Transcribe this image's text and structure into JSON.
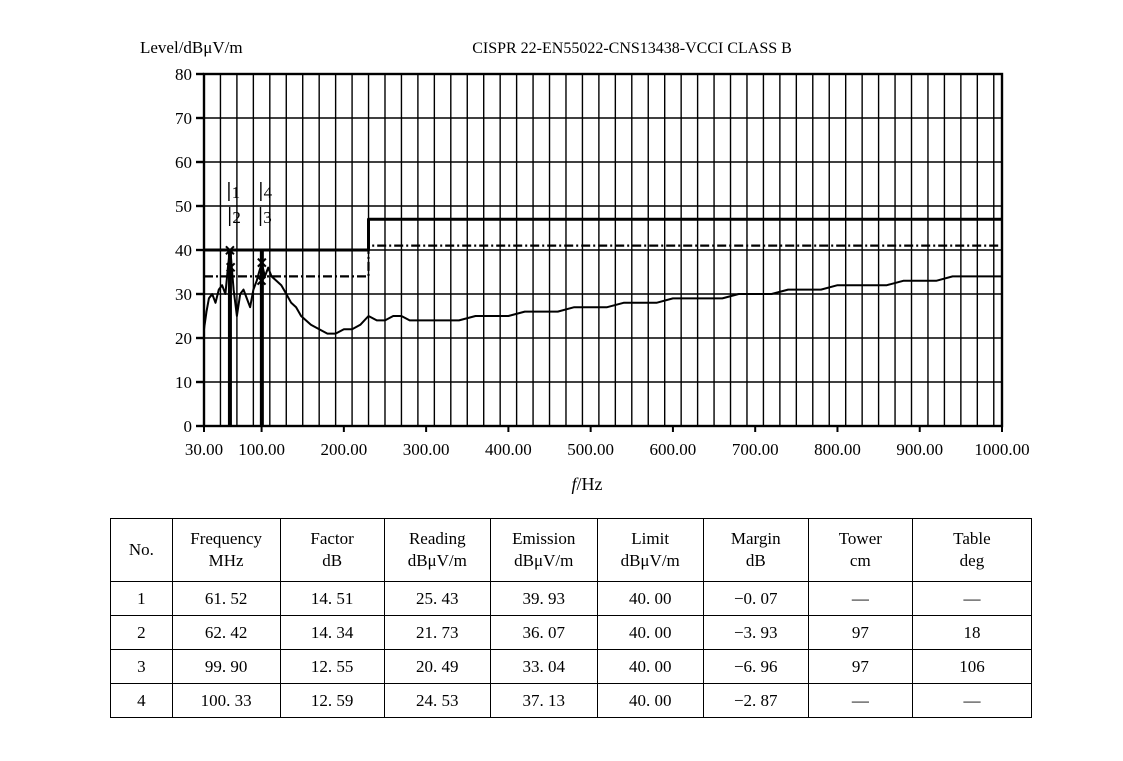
{
  "chart_data": {
    "type": "line",
    "title": "CISPR 22-EN55022-CNS13438-VCCI CLASS B",
    "ylabel": "Level/dBμV/m",
    "xlabel_italic": "f",
    "xlabel_unit": "/Hz",
    "xlim": [
      30,
      1000
    ],
    "ylim": [
      0,
      80
    ],
    "x_ticks": [
      "30.00",
      "100.00",
      "200.00",
      "300.00",
      "400.00",
      "500.00",
      "600.00",
      "700.00",
      "800.00",
      "900.00",
      "1000.00"
    ],
    "y_ticks": [
      "0",
      "10",
      "20",
      "30",
      "40",
      "50",
      "60",
      "70",
      "80"
    ],
    "grid": true,
    "series": [
      {
        "id": "limit",
        "style": "solid-thick",
        "x": [
          30,
          230,
          230,
          1000
        ],
        "y": [
          40,
          40,
          47,
          47
        ]
      },
      {
        "id": "margin-line",
        "style": "dashed",
        "x": [
          30,
          230,
          230,
          1000
        ],
        "y": [
          34,
          34,
          41,
          41
        ]
      },
      {
        "id": "emission",
        "style": "solid",
        "x": [
          30,
          33,
          36,
          40,
          44,
          48,
          52,
          56,
          59,
          61.5,
          63,
          66,
          70,
          74,
          78,
          82,
          86,
          90,
          94,
          97,
          100.3,
          104,
          108,
          112,
          118,
          124,
          130,
          136,
          142,
          148,
          154,
          160,
          170,
          180,
          190,
          200,
          210,
          220,
          230,
          240,
          250,
          260,
          270,
          280,
          290,
          300,
          320,
          340,
          360,
          380,
          400,
          420,
          440,
          460,
          480,
          500,
          520,
          540,
          560,
          580,
          600,
          620,
          640,
          660,
          680,
          700,
          720,
          740,
          760,
          780,
          800,
          820,
          840,
          860,
          880,
          900,
          920,
          940,
          960,
          980,
          1000
        ],
        "y": [
          22,
          26,
          29,
          30,
          28,
          31,
          32,
          30,
          36,
          40,
          38,
          31,
          25,
          30,
          31,
          29,
          27,
          31,
          33,
          35,
          37,
          34,
          36,
          34,
          33,
          32,
          30,
          28,
          27,
          25,
          24,
          23,
          22,
          21,
          21,
          22,
          22,
          23,
          25,
          24,
          24,
          25,
          25,
          24,
          24,
          24,
          24,
          24,
          25,
          25,
          25,
          26,
          26,
          26,
          27,
          27,
          27,
          28,
          28,
          28,
          29,
          29,
          29,
          29,
          30,
          30,
          30,
          31,
          31,
          31,
          32,
          32,
          32,
          32,
          33,
          33,
          33,
          34,
          34,
          34,
          34
        ]
      },
      {
        "id": "markers",
        "style": "markers",
        "x": [
          61.5,
          62.4,
          99.9,
          100.3
        ],
        "y": [
          39.93,
          36.07,
          33.04,
          37.13
        ]
      }
    ],
    "marker_labels": [
      {
        "text": "1",
        "x": 61.52,
        "row": "top"
      },
      {
        "text": "2",
        "x": 62.42,
        "row": "bottom"
      },
      {
        "text": "4",
        "x": 100.33,
        "row": "top"
      },
      {
        "text": "3",
        "x": 99.9,
        "row": "bottom"
      }
    ]
  },
  "table": {
    "headers": [
      [
        "No.",
        ""
      ],
      [
        "Frequency",
        "MHz"
      ],
      [
        "Factor",
        "dB"
      ],
      [
        "Reading",
        "dBμV/m"
      ],
      [
        "Emission",
        "dBμV/m"
      ],
      [
        "Limit",
        "dBμV/m"
      ],
      [
        "Margin",
        "dB"
      ],
      [
        "Tower",
        "cm"
      ],
      [
        "Table",
        "deg"
      ]
    ],
    "rows": [
      [
        "1",
        "61. 52",
        "14. 51",
        "25. 43",
        "39. 93",
        "40. 00",
        "−0. 07",
        "—",
        "—"
      ],
      [
        "2",
        "62. 42",
        "14. 34",
        "21. 73",
        "36. 07",
        "40. 00",
        "−3. 93",
        "97",
        "18"
      ],
      [
        "3",
        "99. 90",
        "12. 55",
        "20. 49",
        "33. 04",
        "40. 00",
        "−6. 96",
        "97",
        "106"
      ],
      [
        "4",
        "100. 33",
        "12. 59",
        "24. 53",
        "37. 13",
        "40. 00",
        "−2. 87",
        "—",
        "—"
      ]
    ]
  }
}
